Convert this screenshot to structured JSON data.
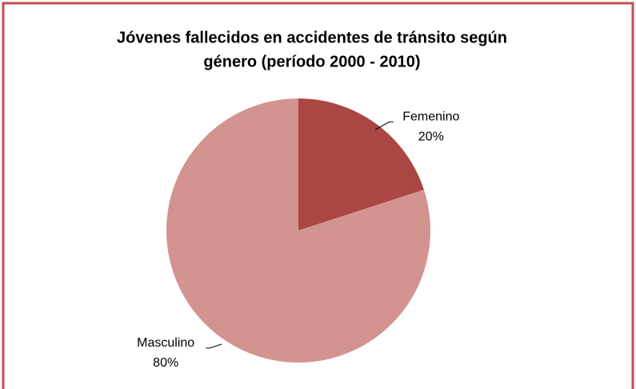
{
  "chart_data": {
    "type": "pie",
    "title": [
      "Jóvenes fallecidos  en accidentes  de tránsito según",
      "género (período 2000 - 2010)"
    ],
    "categories": [
      "Femenino",
      "Masculino"
    ],
    "values": [
      20,
      80
    ],
    "value_labels": [
      "20%",
      "80%"
    ],
    "colors": [
      "#aa4643",
      "#d29391"
    ],
    "start_angle": 0,
    "direction": "clockwise",
    "legend": false
  }
}
